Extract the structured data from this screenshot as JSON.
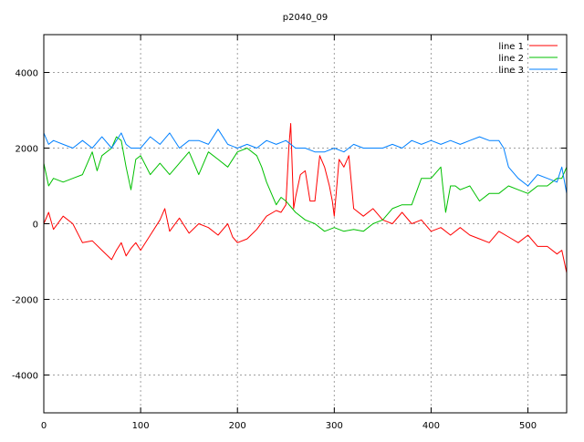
{
  "chart_data": {
    "type": "line",
    "title": "p2040_09",
    "xlabel": "",
    "ylabel": "",
    "xlim": [
      0,
      540
    ],
    "ylim": [
      -5000,
      5000
    ],
    "xticks": [
      0,
      100,
      200,
      300,
      400,
      500
    ],
    "yticks": [
      -4000,
      -2000,
      0,
      2000,
      4000
    ],
    "grid": true,
    "legend_position": "top-right",
    "series": [
      {
        "name": "line 1",
        "color": "#ff0000",
        "x": [
          0,
          5,
          10,
          20,
          30,
          40,
          50,
          60,
          70,
          75,
          80,
          85,
          90,
          95,
          100,
          110,
          120,
          125,
          130,
          140,
          150,
          160,
          170,
          180,
          190,
          195,
          200,
          210,
          220,
          230,
          240,
          245,
          250,
          253,
          255,
          258,
          260,
          265,
          270,
          275,
          280,
          285,
          290,
          295,
          298,
          300,
          305,
          310,
          315,
          320,
          330,
          340,
          350,
          360,
          370,
          380,
          390,
          400,
          410,
          420,
          430,
          440,
          450,
          460,
          470,
          480,
          490,
          500,
          510,
          520,
          530,
          535,
          540
        ],
        "y": [
          0,
          300,
          -150,
          200,
          0,
          -500,
          -450,
          -700,
          -950,
          -700,
          -500,
          -850,
          -650,
          -500,
          -700,
          -300,
          100,
          400,
          -200,
          150,
          -250,
          0,
          -100,
          -300,
          0,
          -350,
          -500,
          -400,
          -150,
          200,
          350,
          300,
          500,
          2000,
          2650,
          400,
          700,
          1300,
          1400,
          600,
          600,
          1800,
          1500,
          1000,
          600,
          200,
          1700,
          1500,
          1800,
          400,
          200,
          400,
          100,
          0,
          300,
          0,
          100,
          -200,
          -100,
          -300,
          -100,
          -300,
          -400,
          -500,
          -200,
          -350,
          -500,
          -300,
          -600,
          -600,
          -800,
          -700,
          -1300
        ]
      },
      {
        "name": "line 2",
        "color": "#00c000",
        "x": [
          0,
          5,
          10,
          20,
          30,
          40,
          50,
          55,
          60,
          70,
          75,
          80,
          85,
          90,
          95,
          100,
          110,
          120,
          130,
          140,
          150,
          160,
          170,
          180,
          190,
          200,
          210,
          220,
          225,
          230,
          240,
          245,
          250,
          260,
          270,
          280,
          290,
          300,
          310,
          320,
          330,
          340,
          350,
          360,
          370,
          380,
          390,
          400,
          410,
          412,
          415,
          420,
          425,
          430,
          440,
          450,
          460,
          470,
          480,
          490,
          500,
          510,
          520,
          530,
          535,
          540
        ],
        "y": [
          1600,
          1000,
          1200,
          1100,
          1200,
          1300,
          1900,
          1400,
          1800,
          2000,
          2300,
          2200,
          1500,
          900,
          1700,
          1800,
          1300,
          1600,
          1300,
          1600,
          1900,
          1300,
          1900,
          1700,
          1500,
          1900,
          2000,
          1800,
          1500,
          1100,
          500,
          700,
          600,
          300,
          100,
          0,
          -200,
          -100,
          -200,
          -150,
          -200,
          0,
          100,
          400,
          500,
          500,
          1200,
          1200,
          1500,
          1000,
          300,
          1000,
          1000,
          900,
          1000,
          600,
          800,
          800,
          1000,
          900,
          800,
          1000,
          1000,
          1200,
          1200,
          1500
        ]
      },
      {
        "name": "line 3",
        "color": "#0080ff",
        "x": [
          0,
          5,
          10,
          20,
          30,
          40,
          50,
          60,
          70,
          80,
          85,
          90,
          100,
          110,
          120,
          130,
          140,
          150,
          160,
          170,
          180,
          190,
          200,
          210,
          220,
          230,
          240,
          250,
          260,
          270,
          280,
          290,
          300,
          310,
          320,
          330,
          340,
          350,
          360,
          370,
          380,
          390,
          400,
          410,
          420,
          430,
          440,
          450,
          460,
          470,
          475,
          480,
          490,
          500,
          510,
          520,
          530,
          535,
          540
        ],
        "y": [
          2400,
          2100,
          2200,
          2100,
          2000,
          2200,
          2000,
          2300,
          2000,
          2400,
          2100,
          2000,
          2000,
          2300,
          2100,
          2400,
          2000,
          2200,
          2200,
          2100,
          2500,
          2100,
          2000,
          2100,
          2000,
          2200,
          2100,
          2200,
          2000,
          2000,
          1900,
          1900,
          2000,
          1900,
          2100,
          2000,
          2000,
          2000,
          2100,
          2000,
          2200,
          2100,
          2200,
          2100,
          2200,
          2100,
          2200,
          2300,
          2200,
          2200,
          2000,
          1500,
          1200,
          1000,
          1300,
          1200,
          1100,
          1500,
          800
        ]
      }
    ]
  }
}
